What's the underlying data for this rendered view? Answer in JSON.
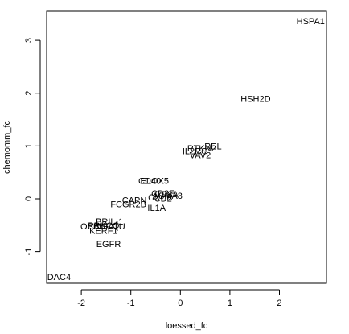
{
  "chart_data": {
    "type": "scatter",
    "title": "",
    "xlabel": "loessed_fc",
    "ylabel": "chemomm_fc",
    "xlim": [
      -2.7,
      2.95
    ],
    "ylim": [
      -1.6,
      3.55
    ],
    "xticks": [
      -2,
      -1,
      0,
      1,
      2
    ],
    "yticks": [
      -1,
      0,
      1,
      2,
      3
    ],
    "grid": false,
    "legend": "none",
    "points": [
      {
        "label": "HSPA1",
        "x": 2.63,
        "y": 3.37
      },
      {
        "label": "HSH2D",
        "x": 1.52,
        "y": 1.9
      },
      {
        "label": "REL",
        "x": 0.66,
        "y": 1.0
      },
      {
        "label": "RTKN2",
        "x": 0.43,
        "y": 0.96
      },
      {
        "label": "IL2RG",
        "x": 0.3,
        "y": 0.91
      },
      {
        "label": "VAV2",
        "x": 0.4,
        "y": 0.83
      },
      {
        "label": "CD40",
        "x": -0.62,
        "y": 0.34
      },
      {
        "label": "ELOX5",
        "x": -0.52,
        "y": 0.34
      },
      {
        "label": "CD3E",
        "x": -0.35,
        "y": 0.11
      },
      {
        "label": "CD8A",
        "x": -0.28,
        "y": 0.09
      },
      {
        "label": "ASMA3",
        "x": -0.26,
        "y": 0.06
      },
      {
        "label": "CXCR",
        "x": -0.4,
        "y": 0.03
      },
      {
        "label": "CD2",
        "x": -0.35,
        "y": 0.01
      },
      {
        "label": "CAPN",
        "x": -0.93,
        "y": -0.02
      },
      {
        "label": "FCGR2B",
        "x": -1.05,
        "y": -0.1
      },
      {
        "label": "IL1A",
        "x": -0.48,
        "y": -0.17
      },
      {
        "label": "BRIL-1",
        "x": -1.43,
        "y": -0.43
      },
      {
        "label": "OSBL1",
        "x": -1.73,
        "y": -0.52
      },
      {
        "label": "PRKCQ",
        "x": -1.55,
        "y": -0.5
      },
      {
        "label": "NFATU",
        "x": -1.4,
        "y": -0.52
      },
      {
        "label": "KERF1",
        "x": -1.55,
        "y": -0.6
      },
      {
        "label": "EGFR",
        "x": -1.45,
        "y": -0.85
      },
      {
        "label": "DAC4",
        "x": -2.45,
        "y": -1.48
      }
    ]
  }
}
